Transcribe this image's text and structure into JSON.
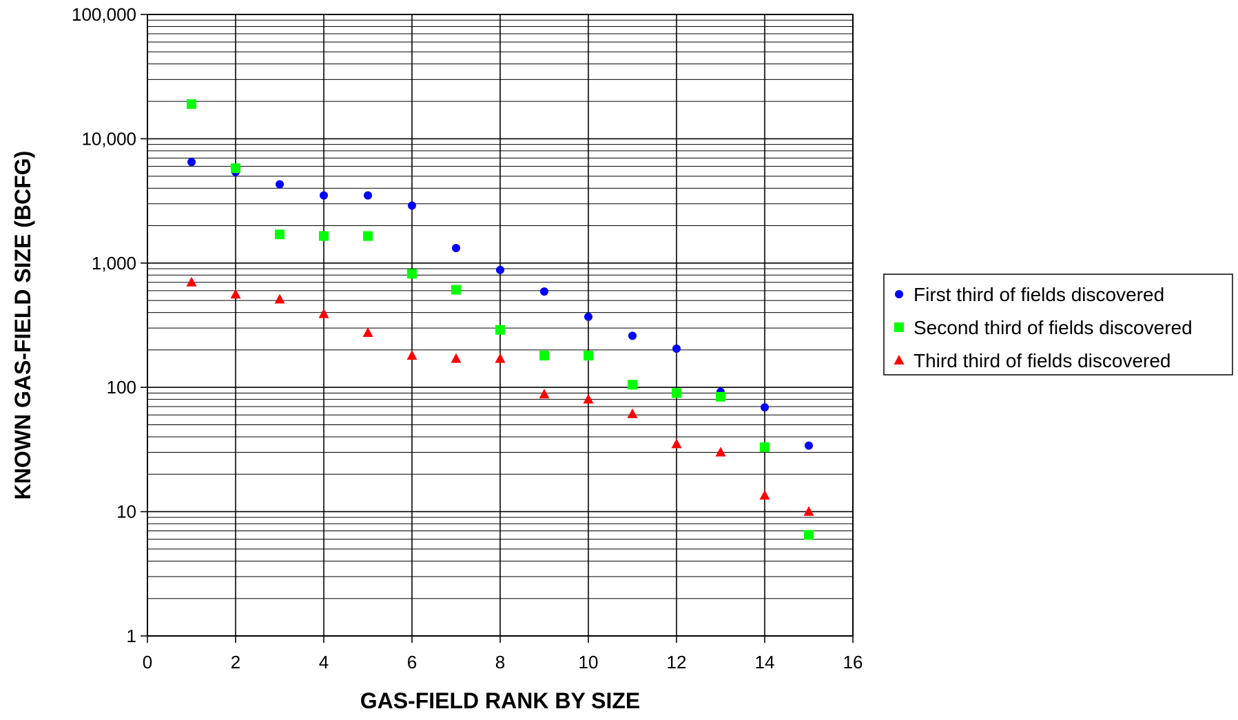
{
  "chart_data": {
    "type": "scatter",
    "title": "",
    "xlabel": "GAS-FIELD RANK BY SIZE",
    "ylabel": "KNOWN GAS-FIELD SIZE (BCFG)",
    "xlim": [
      0,
      16
    ],
    "ylim": [
      1,
      100000
    ],
    "yscale": "log",
    "grid": true,
    "legend_position": "right",
    "x_ticks": [
      "0",
      "2",
      "4",
      "6",
      "8",
      "10",
      "12",
      "14",
      "16"
    ],
    "y_ticks": [
      "1",
      "10",
      "100",
      "1,000",
      "10,000",
      "100,000"
    ],
    "series": [
      {
        "name": "First third of fields discovered",
        "marker": "circle",
        "color": "#0000ff",
        "x": [
          1,
          2,
          3,
          4,
          5,
          6,
          7,
          8,
          9,
          10,
          11,
          12,
          13,
          14,
          15
        ],
        "y": [
          6500,
          5400,
          4300,
          3500,
          3500,
          2900,
          1320,
          880,
          590,
          370,
          260,
          205,
          92,
          69,
          34
        ]
      },
      {
        "name": "Second third of fields discovered",
        "marker": "square",
        "color": "#00ff00",
        "x": [
          1,
          2,
          3,
          4,
          5,
          6,
          7,
          8,
          9,
          10,
          11,
          12,
          13,
          14,
          15
        ],
        "y": [
          19000,
          5800,
          1700,
          1650,
          1650,
          820,
          610,
          290,
          180,
          180,
          105,
          90,
          84,
          33,
          6.5
        ]
      },
      {
        "name": "Third third of fields discovered",
        "marker": "triangle",
        "color": "#ff0000",
        "x": [
          1,
          2,
          3,
          4,
          5,
          6,
          7,
          8,
          9,
          10,
          11,
          12,
          13,
          14,
          15
        ],
        "y": [
          700,
          560,
          510,
          390,
          275,
          180,
          170,
          170,
          88,
          80,
          61,
          35,
          30,
          13.5,
          10
        ]
      }
    ]
  }
}
